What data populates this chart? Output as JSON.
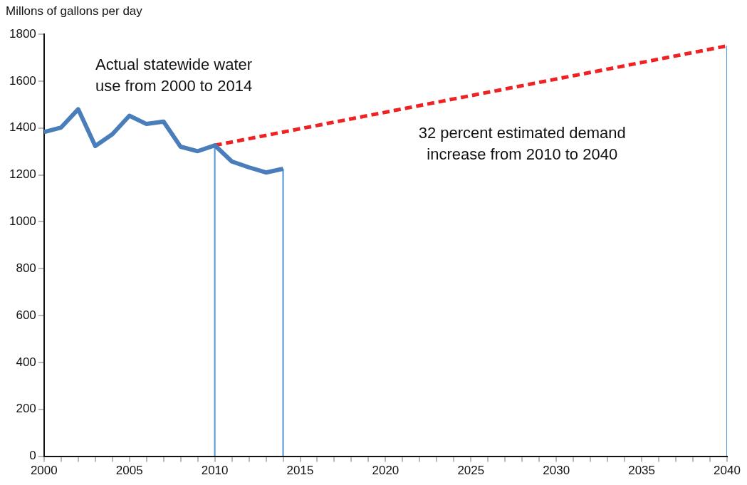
{
  "chart_data": {
    "type": "line",
    "ylabel": "Millons of gallons per day",
    "annotations": [
      "Actual statewide water\nuse from 2000 to 2014",
      "32 percent estimated demand\nincrease from 2010 to 2040"
    ],
    "series": [
      {
        "color": "#4a7ebb",
        "line_style": "solid",
        "x": [
          2000,
          2001,
          2002,
          2003,
          2004,
          2005,
          2006,
          2007,
          2008,
          2009,
          2010,
          2011,
          2012,
          2013,
          2014
        ],
        "values": [
          1383,
          1402,
          1480,
          1323,
          1373,
          1452,
          1417,
          1427,
          1320,
          1301,
          1326,
          1257,
          1232,
          1210,
          1226
        ]
      },
      {
        "color": "#ee2222",
        "line_style": "dashed",
        "x": [
          2010,
          2040
        ],
        "values": [
          1326,
          1750
        ]
      },
      {
        "type": "bar",
        "color": "#5b9bd5",
        "x": [
          2010,
          2014,
          2040
        ],
        "values": [
          1326,
          1226,
          1750
        ]
      }
    ],
    "xlim": [
      2000,
      2040
    ],
    "xticks": [
      2000,
      {
        "value": 2001,
        "label": null
      },
      {
        "value": 2002,
        "label": null
      },
      {
        "value": 2003,
        "label": null
      },
      {
        "value": 2004,
        "label": null
      },
      2005,
      {
        "value": 2006,
        "label": null
      },
      {
        "value": 2007,
        "label": null
      },
      {
        "value": 2008,
        "label": null
      },
      {
        "value": 2009,
        "label": null
      },
      2010,
      {
        "value": 2011,
        "label": null
      },
      {
        "value": 2012,
        "label": null
      },
      {
        "value": 2013,
        "label": null
      },
      {
        "value": 2014,
        "label": null
      },
      2015,
      {
        "value": 2016,
        "label": null
      },
      {
        "value": 2017,
        "label": null
      },
      {
        "value": 2018,
        "label": null
      },
      {
        "value": 2019,
        "label": null
      },
      2020,
      {
        "value": 2021,
        "label": null
      },
      {
        "value": 2022,
        "label": null
      },
      {
        "value": 2023,
        "label": null
      },
      {
        "value": 2024,
        "label": null
      },
      2025,
      {
        "value": 2026,
        "label": null
      },
      {
        "value": 2027,
        "label": null
      },
      {
        "value": 2028,
        "label": null
      },
      {
        "value": 2029,
        "label": null
      },
      2030,
      {
        "value": 2031,
        "label": null
      },
      {
        "value": 2032,
        "label": null
      },
      {
        "value": 2033,
        "label": null
      },
      {
        "value": 2034,
        "label": null
      },
      2035,
      {
        "value": 2036,
        "label": null
      },
      {
        "value": 2037,
        "label": null
      },
      {
        "value": 2038,
        "label": null
      },
      {
        "value": 2039,
        "label": null
      },
      2040
    ],
    "ylim": [
      0,
      1800
    ],
    "yticks": [
      0,
      200,
      400,
      600,
      800,
      1000,
      1200,
      1400,
      1600,
      1800
    ],
    "grid": false,
    "legend": false,
    "marker": "none"
  }
}
